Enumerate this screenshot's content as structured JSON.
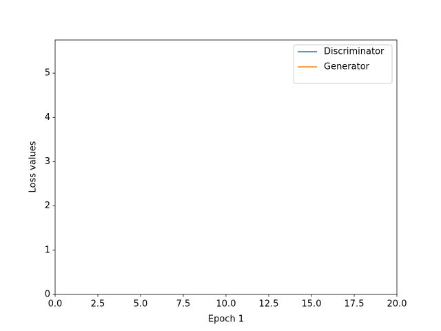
{
  "chart_data": {
    "type": "line",
    "x": [],
    "series": [
      {
        "name": "Discriminator",
        "color": "#1f77b4",
        "values": []
      },
      {
        "name": "Generator",
        "color": "#ff7f0e",
        "values": []
      }
    ],
    "xlabel": "Epoch 1",
    "ylabel": "Loss values",
    "xlim": [
      0,
      20
    ],
    "xticks": [
      {
        "value": 0,
        "label": "0.0"
      },
      2.5,
      {
        "value": 5,
        "label": "5.0"
      },
      7.5,
      {
        "value": 10,
        "label": "10.0"
      },
      12.5,
      {
        "value": 15,
        "label": "15.0"
      },
      17.5,
      {
        "value": 20,
        "label": "20.0"
      }
    ],
    "ylim": [
      0,
      5.75
    ],
    "yticks": [
      0,
      1,
      2,
      3,
      4,
      5
    ],
    "grid": false,
    "legend": "upper-right"
  }
}
